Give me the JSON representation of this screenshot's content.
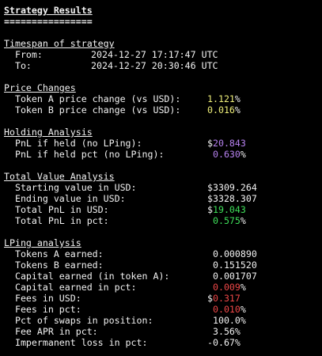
{
  "title": "Strategy Results",
  "title_rule": "================",
  "timespan": {
    "heading": "Timespan of strategy",
    "from_label": "  From:",
    "from_value": "2024-12-27 17:17:47 UTC",
    "to_label": "  To:",
    "to_value": "2024-12-27 20:30:46 UTC"
  },
  "price_changes": {
    "heading": "Price Changes",
    "token_a_label": "  Token A price change (vs USD):",
    "token_a_value": "1.121",
    "token_a_suffix": "%",
    "token_b_label": "  Token B price change (vs USD):",
    "token_b_value": "0.016",
    "token_b_suffix": "%"
  },
  "holding": {
    "heading": "Holding Analysis",
    "pnl_label": "  PnL if held (no LPing):",
    "pnl_prefix": "$",
    "pnl_value": "20.843",
    "pnl_pct_label": "  PnL if held pct (no LPing):",
    "pnl_pct_value": "0.630",
    "pnl_pct_suffix": "%"
  },
  "total_value": {
    "heading": "Total Value Analysis",
    "start_label": "  Starting value in USD:",
    "start_value": "$3309.264",
    "end_label": "  Ending value in USD:",
    "end_value": "$3328.307",
    "pnl_label": "  Total PnL in USD:",
    "pnl_prefix": "$",
    "pnl_value": "19.043",
    "pnl_pct_label": "  Total PnL in pct:",
    "pnl_pct_value": "0.575",
    "pnl_pct_suffix": "%"
  },
  "lping": {
    "heading": "LPing analysis",
    "tokens_a_label": "  Tokens A earned:",
    "tokens_a_value": "0.000890",
    "tokens_b_label": "  Tokens B earned:",
    "tokens_b_value": "0.151520",
    "capital_label": "  Capital earned (in token A):",
    "capital_value": "0.001707",
    "capital_pct_label": "  Capital earned in pct:",
    "capital_pct_value": "0.009",
    "capital_pct_suffix": "%",
    "fees_usd_label": "  Fees in USD:",
    "fees_usd_prefix": "$",
    "fees_usd_value": "0.317",
    "fees_pct_label": "  Fees in pct:",
    "fees_pct_value": "0.010",
    "fees_pct_suffix": "%",
    "swaps_label": "  Pct of swaps in position:",
    "swaps_value": "100.0%",
    "apr_label": "  Fee APR in pct:",
    "apr_value": "3.56%",
    "il_label": "  Impermanent loss in pct:",
    "il_value": "-0.67%"
  },
  "colors": {
    "background": "#000000",
    "text": "#f2f2f2",
    "yellow": "#f0f07a",
    "purple": "#b782f0",
    "green": "#3fe05a",
    "red": "#f04848"
  }
}
